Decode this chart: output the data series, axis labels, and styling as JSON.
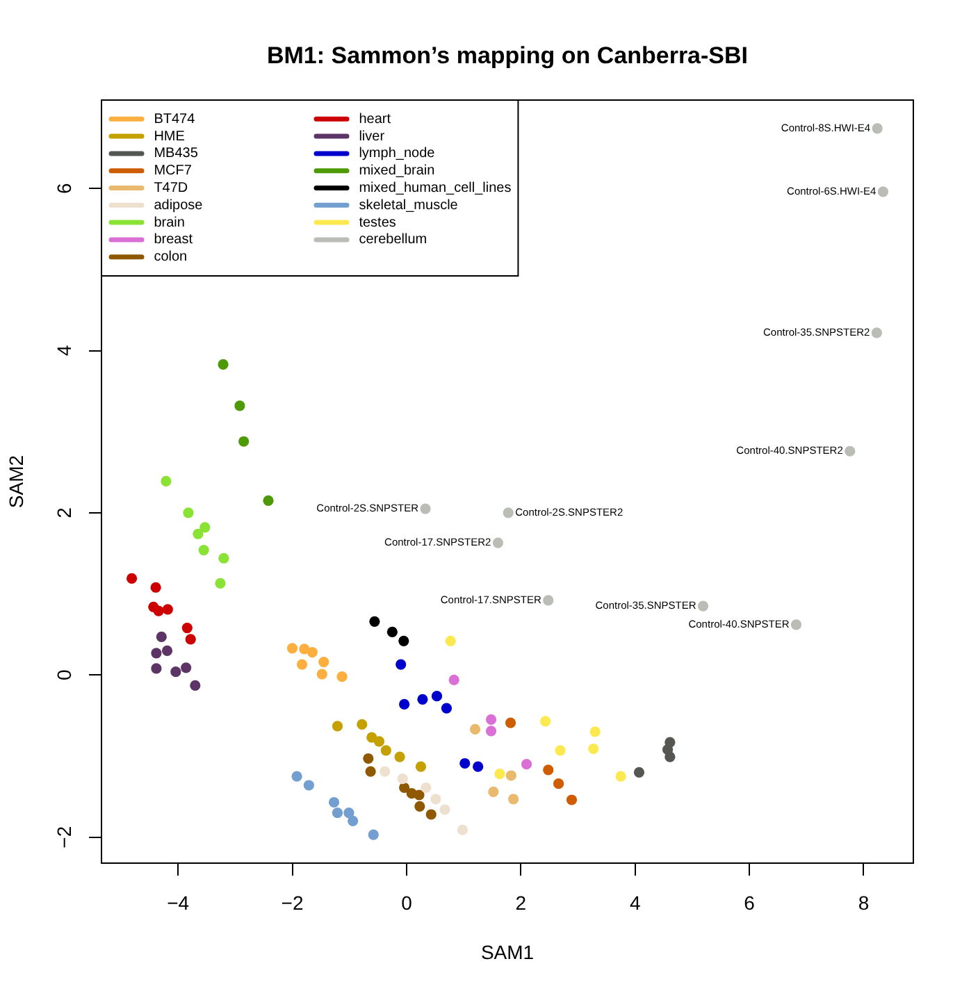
{
  "chart_data": {
    "type": "scatter",
    "title": "BM1: Sammon’s mapping on Canberra-SBI",
    "xlabel": "SAM1",
    "ylabel": "SAM2",
    "xlim": [
      -5.34,
      8.87
    ],
    "ylim": [
      -2.32,
      7.09
    ],
    "xticks": [
      -4,
      -2,
      0,
      2,
      4,
      6,
      8
    ],
    "yticks": [
      -2,
      0,
      2,
      4,
      6
    ],
    "marker": "circle",
    "legend": "top left",
    "grid": false,
    "series": [
      {
        "name": "BT474",
        "color": "#fcaf3e",
        "x": [
          -2.0,
          -1.79,
          -1.65,
          -1.83,
          -1.45,
          -1.48,
          -1.13
        ],
        "values": [
          0.33,
          0.32,
          0.28,
          0.13,
          0.16,
          0.01,
          -0.02
        ]
      },
      {
        "name": "HME",
        "color": "#c4a000",
        "x": [
          -1.21,
          -0.78,
          -0.61,
          -0.48,
          -0.36,
          -0.12,
          0.25
        ],
        "values": [
          -0.63,
          -0.61,
          -0.77,
          -0.82,
          -0.93,
          -1.01,
          -1.13
        ]
      },
      {
        "name": "MB435",
        "color": "#555753",
        "x": [
          4.61,
          4.57,
          4.61,
          4.07
        ],
        "values": [
          -0.83,
          -0.92,
          -1.01,
          -1.2
        ]
      },
      {
        "name": "MCF7",
        "color": "#ce5c00",
        "x": [
          1.82,
          2.48,
          2.66,
          2.89
        ],
        "values": [
          -0.59,
          -1.17,
          -1.34,
          -1.54
        ]
      },
      {
        "name": "T47D",
        "color": "#e9b96e",
        "x": [
          1.2,
          1.83,
          1.52,
          1.87
        ],
        "values": [
          -0.67,
          -1.24,
          -1.44,
          -1.53
        ]
      },
      {
        "name": "adipose",
        "color": "#eee0cf",
        "x": [
          -0.38,
          -0.07,
          0.34,
          0.51,
          0.67,
          0.98
        ],
        "values": [
          -1.19,
          -1.28,
          -1.39,
          -1.53,
          -1.66,
          -1.91
        ]
      },
      {
        "name": "brain",
        "color": "#8ae234",
        "x": [
          -4.21,
          -3.82,
          -3.53,
          -3.65,
          -3.55,
          -3.2,
          -3.26
        ],
        "values": [
          2.39,
          2.0,
          1.82,
          1.74,
          1.54,
          1.44,
          1.13
        ]
      },
      {
        "name": "breast",
        "color": "#da70d6",
        "x": [
          0.83,
          1.48,
          1.48,
          2.1
        ],
        "values": [
          -0.06,
          -0.55,
          -0.69,
          -1.1
        ]
      },
      {
        "name": "colon",
        "color": "#8f5902",
        "x": [
          -0.67,
          -0.63,
          -0.04,
          0.09,
          0.22,
          0.23,
          0.43
        ],
        "values": [
          -1.03,
          -1.19,
          -1.39,
          -1.46,
          -1.48,
          -1.62,
          -1.72
        ]
      },
      {
        "name": "heart",
        "color": "#cc0000",
        "x": [
          -4.81,
          -4.39,
          -4.43,
          -4.34,
          -4.18,
          -3.84,
          -3.78
        ],
        "values": [
          1.19,
          1.08,
          0.84,
          0.79,
          0.81,
          0.58,
          0.44
        ]
      },
      {
        "name": "liver",
        "color": "#5c3566",
        "x": [
          -4.29,
          -4.38,
          -4.19,
          -4.38,
          -4.04,
          -3.86,
          -3.7
        ],
        "values": [
          0.47,
          0.27,
          0.3,
          0.08,
          0.04,
          0.09,
          -0.13
        ]
      },
      {
        "name": "lymph_node",
        "color": "#0000cd",
        "x": [
          -0.1,
          -0.04,
          0.28,
          0.53,
          0.7,
          1.02,
          1.25
        ],
        "values": [
          0.13,
          -0.36,
          -0.3,
          -0.26,
          -0.41,
          -1.09,
          -1.13
        ]
      },
      {
        "name": "mixed_brain",
        "color": "#4e9a06",
        "x": [
          -3.21,
          -2.92,
          -2.85,
          -2.42
        ],
        "values": [
          3.83,
          3.32,
          2.88,
          2.15
        ]
      },
      {
        "name": "mixed_human_cell_lines",
        "color": "#000000",
        "x": [
          -0.56,
          -0.25,
          -0.05
        ],
        "values": [
          0.66,
          0.53,
          0.42
        ]
      },
      {
        "name": "skeletal_muscle",
        "color": "#729fcf",
        "x": [
          -1.92,
          -1.71,
          -1.27,
          -1.21,
          -1.01,
          -0.94,
          -0.58
        ],
        "values": [
          -1.25,
          -1.36,
          -1.57,
          -1.7,
          -1.7,
          -1.8,
          -1.97
        ]
      },
      {
        "name": "testes",
        "color": "#fce94f",
        "x": [
          0.77,
          2.43,
          3.3,
          2.69,
          3.27,
          1.63,
          3.75
        ],
        "values": [
          0.42,
          -0.57,
          -0.7,
          -0.93,
          -0.91,
          -1.22,
          -1.25
        ]
      },
      {
        "name": "cerebellum",
        "color": "#babdb6",
        "x": [
          8.24,
          8.34,
          8.23,
          7.76,
          0.33,
          1.78,
          1.6,
          2.48,
          5.19,
          6.82
        ],
        "values": [
          6.74,
          5.96,
          4.22,
          2.76,
          2.05,
          2.0,
          1.63,
          0.92,
          0.85,
          0.62
        ]
      }
    ],
    "annotations": [
      {
        "text": "Control-8S.HWI-E4",
        "x": 8.24,
        "y": 6.74
      },
      {
        "text": "Control-6S.HWI-E4",
        "x": 8.34,
        "y": 5.96
      },
      {
        "text": "Control-35.SNPSTER2",
        "x": 8.23,
        "y": 4.22
      },
      {
        "text": "Control-40.SNPSTER2",
        "x": 7.76,
        "y": 2.76
      },
      {
        "text": "Control-2S.SNPSTER",
        "x": 0.33,
        "y": 2.05
      },
      {
        "text": "Control-2S.SNPSTER2",
        "x": 1.78,
        "y": 2.0
      },
      {
        "text": "Control-17.SNPSTER2",
        "x": 1.6,
        "y": 1.63
      },
      {
        "text": "Control-17.SNPSTER",
        "x": 2.48,
        "y": 0.92
      },
      {
        "text": "Control-35.SNPSTER",
        "x": 5.19,
        "y": 0.85
      },
      {
        "text": "Control-40.SNPSTER",
        "x": 6.82,
        "y": 0.62
      }
    ]
  }
}
